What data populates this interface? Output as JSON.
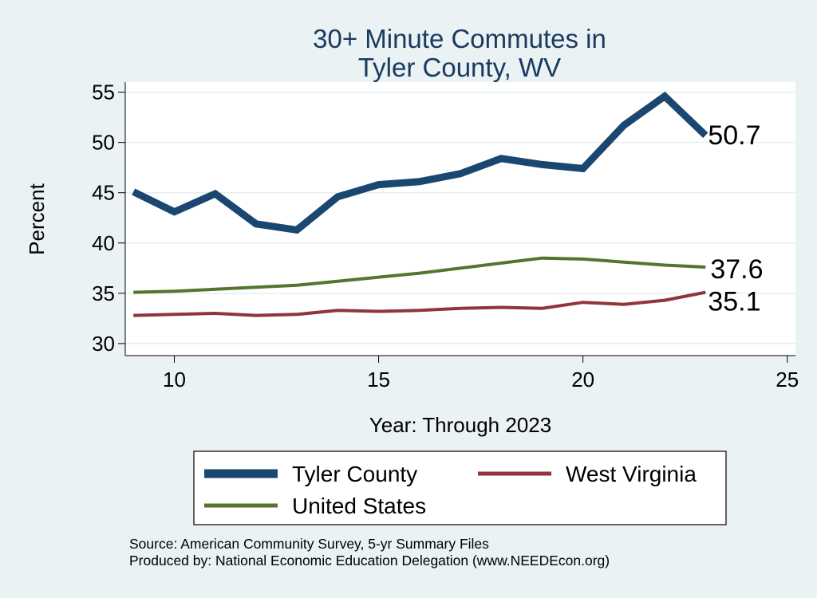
{
  "chart_data": {
    "type": "line",
    "title_lines": [
      "30+ Minute Commutes in",
      "Tyler County, WV"
    ],
    "xlabel": "Year: Through 2023",
    "ylabel": "Percent",
    "xlim": [
      8.8,
      25.2
    ],
    "ylim": [
      28.8,
      56
    ],
    "xticks": [
      10,
      15,
      20,
      25
    ],
    "yticks": [
      30,
      35,
      40,
      45,
      50,
      55
    ],
    "grid": true,
    "x": [
      9,
      10,
      11,
      12,
      13,
      14,
      15,
      16,
      17,
      18,
      19,
      20,
      21,
      22,
      23
    ],
    "series": [
      {
        "name": "Tyler County",
        "color": "#1a476f",
        "values": [
          45.1,
          43.1,
          44.9,
          41.9,
          41.3,
          44.6,
          45.8,
          46.1,
          46.9,
          48.4,
          47.8,
          47.4,
          51.7,
          54.6,
          50.7
        ],
        "end_label": "50.7"
      },
      {
        "name": "West Virginia",
        "color": "#90353b",
        "values": [
          32.8,
          32.9,
          33.0,
          32.8,
          32.9,
          33.3,
          33.2,
          33.3,
          33.5,
          33.6,
          33.5,
          34.1,
          33.9,
          34.3,
          35.1
        ],
        "end_label": "35.1"
      },
      {
        "name": "United States",
        "color": "#55752f",
        "values": [
          35.1,
          35.2,
          35.4,
          35.6,
          35.8,
          36.2,
          36.6,
          37.0,
          37.5,
          38.0,
          38.5,
          38.4,
          38.1,
          37.8,
          37.6
        ],
        "end_label": "37.6"
      }
    ],
    "legend": {
      "placement": "bottom",
      "entries": [
        "Tyler County",
        "West Virginia",
        "United States"
      ]
    },
    "notes": [
      "Source: American Community Survey, 5-yr Summary Files",
      "Produced by: National Economic Education Delegation (www.NEEDEcon.org)"
    ]
  }
}
